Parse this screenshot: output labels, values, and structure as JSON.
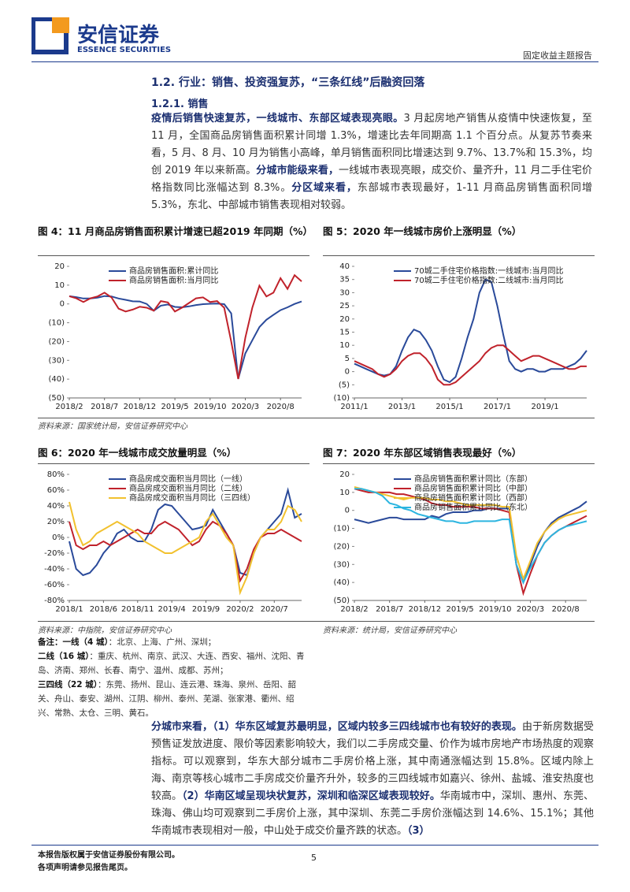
{
  "header": {
    "company": "安信证券",
    "company_en": "ESSENCE SECURITIES",
    "report_type": "固定收益主题报告"
  },
  "section": {
    "heading": "1.2. 行业：销售、投资强复苏，“三条红线”后融资回落",
    "subheading": "1.2.1. 销售"
  },
  "paragraph1": {
    "runs": [
      {
        "text": "疫情后销售快速复苏，一线城市、东部区域表现亮眼。",
        "bold": true
      },
      {
        "text": "3 月起房地产销售从疫情中快速恢复，至 11 月，全国商品房销售面积累计同增 1.3%，增速比去年同期高 1.1 个百分点。从复苏节奏来看，5 月、8 月、10 月为销售小高峰，单月销售面积同比增速达到 9.7%、13.7%和 15.3%，均创 2019 年以来新高。"
      },
      {
        "text": "分城市能级来看，",
        "bold": true
      },
      {
        "text": "一线城市表现亮眼，成交价、量齐升，11 月二手住宅价格指数同比涨幅达到 8.3%。"
      },
      {
        "text": "分区域来看，",
        "bold": true
      },
      {
        "text": "东部城市表现最好，1-11 月商品房销售面积同增 5.3%，东北、中部城市销售表现相对较弱。"
      }
    ]
  },
  "chart_data": [
    {
      "type": "line",
      "title": "图 4：11 月商品房销售面积累计增速已超2019 年同期（%）",
      "source": "资料来源：国家统计局，安信证券研究中心",
      "legend": "upper left",
      "x": [
        "2018/2",
        "2018/3",
        "2018/4",
        "2018/5",
        "2018/6",
        "2018/7",
        "2018/8",
        "2018/9",
        "2018/10",
        "2018/11",
        "2018/12",
        "2019/1",
        "2019/2",
        "2019/3",
        "2019/4",
        "2019/5",
        "2019/6",
        "2019/7",
        "2019/8",
        "2019/9",
        "2019/10",
        "2019/11",
        "2019/12",
        "2020/1",
        "2020/2",
        "2020/3",
        "2020/4",
        "2020/5",
        "2020/6",
        "2020/7",
        "2020/8",
        "2020/9",
        "2020/10",
        "2020/11"
      ],
      "xticks": [
        "2018/2",
        "2018/7",
        "2018/12",
        "2019/5",
        "2019/10",
        "2020/3",
        "2020/8"
      ],
      "ylim": [
        -50,
        20
      ],
      "yticks": [
        20,
        10,
        0,
        {
          "value": -10,
          "label": "(10)"
        },
        {
          "value": -20,
          "label": "(20)"
        },
        {
          "value": -30,
          "label": "(30)"
        },
        {
          "value": -40,
          "label": "(40)"
        },
        {
          "value": -50,
          "label": "(50)"
        }
      ],
      "series": [
        {
          "name": "商品房销售面积:累计同比",
          "color": "#2a4a9a",
          "values": [
            4.1,
            3.6,
            2.9,
            2.9,
            3.3,
            4.2,
            4.0,
            2.9,
            2.2,
            1.4,
            1.3,
            0,
            -3.6,
            -0.9,
            -0.3,
            -1.6,
            -1.8,
            -1.3,
            -0.6,
            -0.1,
            0.1,
            0.2,
            -0.1,
            -5,
            -39.9,
            -26.3,
            -19.3,
            -12.3,
            -8.4,
            -5.8,
            -3.3,
            -1.8,
            0,
            1.3
          ]
        },
        {
          "name": "商品房销售面积:当月同比",
          "color": "#c0222b",
          "values": [
            4.1,
            3.0,
            1.0,
            3.0,
            4.0,
            6.0,
            3.5,
            -2.5,
            -4.0,
            -3.0,
            -1.5,
            -2,
            -3.6,
            1.5,
            0.8,
            -4.0,
            -2.0,
            0.5,
            3.0,
            3.5,
            1.0,
            1.5,
            -2.0,
            -20,
            -39.9,
            -18.0,
            -2.0,
            9.7,
            4.0,
            6.0,
            13.7,
            8.0,
            15.3,
            12.0
          ]
        }
      ]
    },
    {
      "type": "line",
      "title": "图 5：2020 年一线城市房价上涨明显（%）",
      "legend": "upper left",
      "x": [
        "2011/1",
        "2011/4",
        "2011/7",
        "2011/10",
        "2012/1",
        "2012/4",
        "2012/7",
        "2012/10",
        "2013/1",
        "2013/4",
        "2013/7",
        "2013/10",
        "2014/1",
        "2014/4",
        "2014/7",
        "2014/10",
        "2015/1",
        "2015/4",
        "2015/7",
        "2015/10",
        "2016/1",
        "2016/4",
        "2016/7",
        "2016/10",
        "2017/1",
        "2017/4",
        "2017/7",
        "2017/10",
        "2018/1",
        "2018/4",
        "2018/7",
        "2018/10",
        "2019/1",
        "2019/4",
        "2019/7",
        "2019/10",
        "2020/1",
        "2020/4",
        "2020/7",
        "2020/10"
      ],
      "xticks": [
        "2011/1",
        "2013/1",
        "2015/1",
        "2017/1",
        "2019/1"
      ],
      "ylim": [
        -10,
        40
      ],
      "yticks": [
        40,
        35,
        30,
        25,
        20,
        15,
        10,
        5,
        0,
        {
          "value": -5,
          "label": "(5)"
        },
        {
          "value": -10,
          "label": "(10)"
        }
      ],
      "series": [
        {
          "name": "70城二手住宅价格指数:一线城市:当月同比",
          "color": "#2a4a9a",
          "values": [
            3,
            2,
            1,
            0,
            -1,
            -1.5,
            -1,
            2,
            8,
            13,
            16,
            15,
            12,
            8,
            2,
            -3,
            -4,
            -2,
            5,
            13,
            20,
            30,
            35,
            34,
            25,
            14,
            4,
            1,
            0,
            1,
            1,
            0,
            0,
            1,
            1,
            1,
            2,
            3,
            5,
            8
          ]
        },
        {
          "name": "70城二手住宅价格指数:二线城市:当月同比",
          "color": "#c0222b",
          "values": [
            4,
            3,
            2,
            1,
            -1,
            -2,
            -1,
            1,
            4,
            6,
            7,
            7,
            5,
            2,
            -3,
            -5,
            -5,
            -4,
            -2,
            0,
            2,
            4,
            7,
            9,
            10,
            10,
            8,
            6,
            4,
            5,
            6,
            6,
            5,
            4,
            3,
            2,
            1,
            1,
            2,
            2
          ]
        }
      ]
    },
    {
      "type": "line",
      "title": "图 6：2020 年一线城市成交放量明显（%）",
      "source": "资料来源：中指院，安信证券研究中心",
      "legend": "upper left",
      "x": [
        "2018/1",
        "2018/2",
        "2018/3",
        "2018/4",
        "2018/5",
        "2018/6",
        "2018/7",
        "2018/8",
        "2018/9",
        "2018/10",
        "2018/11",
        "2018/12",
        "2019/1",
        "2019/2",
        "2019/3",
        "2019/4",
        "2019/5",
        "2019/6",
        "2019/7",
        "2019/8",
        "2019/9",
        "2019/10",
        "2019/11",
        "2019/12",
        "2020/1",
        "2020/2",
        "2020/3",
        "2020/4",
        "2020/5",
        "2020/6",
        "2020/7",
        "2020/8",
        "2020/9",
        "2020/10",
        "2020/11"
      ],
      "xticks": [
        "2018/1",
        "2018/6",
        "2018/11",
        "2019/4",
        "2019/9",
        "2020/2",
        "2020/7"
      ],
      "ylim": [
        -80,
        80
      ],
      "yticks": [
        {
          "value": 80,
          "label": "80%"
        },
        {
          "value": 60,
          "label": "60%"
        },
        {
          "value": 40,
          "label": "40%"
        },
        {
          "value": 20,
          "label": "20%"
        },
        {
          "value": 0,
          "label": "0%"
        },
        {
          "value": -20,
          "label": "-20%"
        },
        {
          "value": -40,
          "label": "-40%"
        },
        {
          "value": -60,
          "label": "-60%"
        },
        {
          "value": -80,
          "label": "-80%"
        }
      ],
      "series": [
        {
          "name": "商品房成交面积当月同比（一线）",
          "color": "#2a4a9a",
          "values": [
            -5,
            -40,
            -48,
            -45,
            -35,
            -20,
            -10,
            5,
            10,
            0,
            -5,
            -5,
            10,
            35,
            42,
            40,
            30,
            20,
            10,
            12,
            15,
            35,
            20,
            5,
            -10,
            -45,
            -48,
            -20,
            0,
            10,
            20,
            30,
            60,
            25,
            30
          ]
        },
        {
          "name": "商品房成交面积当月同比（二线）",
          "color": "#c0222b",
          "values": [
            20,
            -10,
            -15,
            -10,
            -10,
            -5,
            -10,
            -5,
            0,
            5,
            10,
            5,
            5,
            15,
            20,
            15,
            10,
            0,
            -10,
            -5,
            10,
            20,
            15,
            5,
            -10,
            -55,
            -40,
            -15,
            0,
            5,
            5,
            10,
            5,
            0,
            -5
          ]
        },
        {
          "name": "商品房成交面积当月同比（三四线）",
          "color": "#f2c12e",
          "values": [
            45,
            10,
            -10,
            -5,
            5,
            10,
            15,
            20,
            15,
            10,
            5,
            -5,
            -10,
            -15,
            -20,
            -20,
            -15,
            -10,
            -5,
            0,
            20,
            30,
            15,
            0,
            -10,
            -70,
            -50,
            -20,
            0,
            10,
            10,
            20,
            40,
            35,
            20
          ]
        }
      ]
    },
    {
      "type": "line",
      "title": "图 7：2020 年东部区域销售表现最好（%）",
      "source": "资料来源：统计局，安信证券研究中心",
      "legend": "upper left",
      "x": [
        "2018/2",
        "2018/3",
        "2018/4",
        "2018/5",
        "2018/6",
        "2018/7",
        "2018/8",
        "2018/9",
        "2018/10",
        "2018/11",
        "2018/12",
        "2019/1",
        "2019/2",
        "2019/3",
        "2019/4",
        "2019/5",
        "2019/6",
        "2019/7",
        "2019/8",
        "2019/9",
        "2019/10",
        "2019/11",
        "2019/12",
        "2020/1",
        "2020/2",
        "2020/3",
        "2020/4",
        "2020/5",
        "2020/6",
        "2020/7",
        "2020/8",
        "2020/9",
        "2020/10",
        "2020/11"
      ],
      "xticks": [
        "2018/2",
        "2018/7",
        "2018/12",
        "2019/5",
        "2019/10",
        "2020/3",
        "2020/8"
      ],
      "ylim": [
        -50,
        20
      ],
      "yticks": [
        20,
        10,
        0,
        {
          "value": -10,
          "label": "(10)"
        },
        {
          "value": -20,
          "label": "(20)"
        },
        {
          "value": -30,
          "label": "(30)"
        },
        {
          "value": -40,
          "label": "(40)"
        },
        {
          "value": -50,
          "label": "(50)"
        }
      ],
      "series": [
        {
          "name": "商品房销售面积累计同比（东部）",
          "color": "#2a4a9a",
          "values": [
            -5,
            -6,
            -7,
            -6,
            -5,
            -4,
            -4,
            -5,
            -5,
            -5,
            -5,
            -3,
            -4,
            -2,
            -1,
            -1,
            -1,
            0,
            0,
            1,
            1,
            1,
            1,
            -30,
            -40,
            -30,
            -20,
            -12,
            -7,
            -4,
            -2,
            0,
            2,
            5
          ]
        },
        {
          "name": "商品房销售面积累计同比（中部）",
          "color": "#c0222b",
          "values": [
            12,
            11,
            10,
            10,
            10,
            10,
            9,
            9,
            8,
            7,
            6,
            4,
            3,
            3,
            2,
            2,
            2,
            2,
            1,
            1,
            1,
            0,
            -1,
            -30,
            -46,
            -35,
            -25,
            -18,
            -14,
            -11,
            -9,
            -7,
            -5,
            -3
          ]
        },
        {
          "name": "商品房销售面积累计同比（西部）",
          "color": "#f2c12e",
          "values": [
            13,
            12,
            11,
            10,
            9,
            8,
            7,
            6,
            7,
            7,
            7,
            6,
            6,
            5,
            5,
            4,
            3,
            3,
            3,
            3,
            3,
            2,
            2,
            -25,
            -38,
            -28,
            -18,
            -12,
            -8,
            -5,
            -3,
            -2,
            -1,
            0
          ]
        },
        {
          "name": "商品房销售面积累计同比（东北）",
          "color": "#2cb5e0",
          "values": [
            12,
            12,
            11,
            10,
            8,
            4,
            3,
            1,
            0,
            -2,
            -3,
            -4,
            -5,
            -6,
            -6,
            -7,
            -7,
            -6,
            -6,
            -6,
            -6,
            -5,
            -5,
            -30,
            -40,
            -32,
            -25,
            -18,
            -14,
            -11,
            -9,
            -8,
            -7,
            -6
          ]
        }
      ]
    }
  ],
  "notes": [
    {
      "runs": [
        {
          "text": "备注：一线（4 城）",
          "bold": true
        },
        {
          "text": "：北京、上海、广州、深圳；"
        }
      ]
    },
    {
      "runs": [
        {
          "text": "二线（16 城）",
          "bold": true
        },
        {
          "text": "：重庆、杭州、南京、武汉、大连、西安、福州、沈阳、青岛、济南、郑州、长春、南宁、温州、成都、苏州；"
        }
      ]
    },
    {
      "runs": [
        {
          "text": "三四线（22 城）",
          "bold": true
        },
        {
          "text": "：东莞、扬州、昆山、连云港、珠海、泉州、岳阳、韶关、舟山、泰安、湖州、江阴、柳州、泰州、芜湖、张家港、衢州、绍兴、常熟、太仓、三明、黄石。"
        }
      ]
    }
  ],
  "paragraph2": {
    "runs": [
      {
        "text": "分城市来看，（1）华东区域复苏最明显，区域内较多三四线城市也有较好的表现。",
        "bold": true
      },
      {
        "text": "由于新房数据受预售证发放进度、限价等因素影响较大，我们以二手房成交量、价作为城市房地产市场热度的观察指标。可以观察到，华东大部分城市二手房价格上涨，其中南通涨幅达到 15.8%。区域内除上海、南京等核心城市二手房成交价量齐升外，较多的三四线城市如嘉兴、徐州、盐城、淮安热度也较高。"
      },
      {
        "text": "（2）华南区域呈现块状复苏，深圳和临深区域表现较好。",
        "bold": true
      },
      {
        "text": "华南城市中，深圳、惠州、东莞、珠海、佛山均可观察到二手房价上涨，其中深圳、东莞二手房价涨幅达到 14.6%、15.1%；其他华南城市表现相对一般，中山处于成交价量齐跌的状态。"
      },
      {
        "text": "（3）",
        "bold": true
      }
    ]
  },
  "footer": {
    "lines": [
      "本报告版权属于安信证券股份有限公司。",
      "各项声明请参见报告尾页。"
    ],
    "page": "5"
  }
}
